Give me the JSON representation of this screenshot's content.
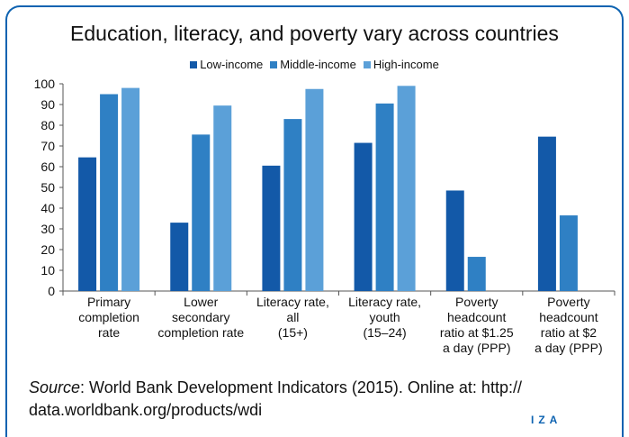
{
  "chart_data": {
    "type": "bar",
    "title": "Education, literacy, and poverty vary across countries",
    "categories": [
      [
        "Primary",
        "completion",
        "rate"
      ],
      [
        "Lower",
        "secondary",
        "completion rate"
      ],
      [
        "Literacy rate,",
        "all",
        "(15+)"
      ],
      [
        "Literacy rate,",
        "youth",
        "(15–24)"
      ],
      [
        "Poverty",
        "headcount",
        "ratio at $1.25",
        "a day (PPP)"
      ],
      [
        "Poverty",
        "headcount",
        "ratio at $2",
        "a day (PPP)"
      ]
    ],
    "series": [
      {
        "name": "Low-income",
        "color": "#1359a8",
        "values": [
          64.5,
          33,
          60.5,
          71.5,
          48.5,
          74.5
        ]
      },
      {
        "name": "Middle-income",
        "color": "#2f80c4",
        "values": [
          95,
          75.5,
          83,
          90.5,
          16.5,
          36.5
        ]
      },
      {
        "name": "High-income",
        "color": "#5ba0d8",
        "values": [
          98,
          89.5,
          97.5,
          99,
          null,
          null
        ]
      }
    ],
    "ylim": [
      0,
      100
    ],
    "yticks": [
      0,
      10,
      20,
      30,
      40,
      50,
      60,
      70,
      80,
      90,
      100
    ],
    "xlabel": "",
    "ylabel": "",
    "legend": "top-center",
    "grid": false
  },
  "source": {
    "prefix": "Source",
    "text": ": World Bank Development Indicators (2015). Online at: http:// data.worldbank.org/products/wdi"
  },
  "brand": "IZA",
  "colors": {
    "frame": "#0e63b1"
  }
}
